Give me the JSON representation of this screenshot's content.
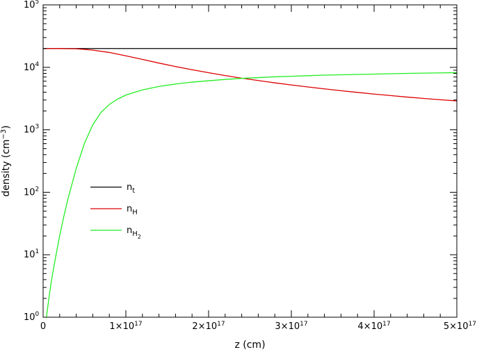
{
  "chart_data": {
    "type": "line",
    "title": "",
    "xlabel": "z (cm)",
    "ylabel": "density (cm",
    "ylabel_exp": "−3",
    "ylabel_close": ")",
    "xlim": [
      0,
      5e+17
    ],
    "ylim": [
      1,
      100000
    ],
    "yscale": "log",
    "grid": false,
    "legend_position": "left-middle",
    "x_ticks": [
      {
        "value": 0,
        "mantissa": "0",
        "exp": ""
      },
      {
        "value": 1e+17,
        "mantissa": "1×10",
        "exp": "17"
      },
      {
        "value": 2e+17,
        "mantissa": "2×10",
        "exp": "17"
      },
      {
        "value": 3e+17,
        "mantissa": "3×10",
        "exp": "17"
      },
      {
        "value": 4e+17,
        "mantissa": "4×10",
        "exp": "17"
      },
      {
        "value": 5e+17,
        "mantissa": "5×10",
        "exp": "17"
      }
    ],
    "y_ticks": [
      {
        "value": 1,
        "base": "10",
        "exp": "0"
      },
      {
        "value": 10,
        "base": "10",
        "exp": "1"
      },
      {
        "value": 100,
        "base": "10",
        "exp": "2"
      },
      {
        "value": 1000,
        "base": "10",
        "exp": "3"
      },
      {
        "value": 10000,
        "base": "10",
        "exp": "4"
      },
      {
        "value": 100000,
        "base": "10",
        "exp": "5"
      }
    ],
    "series": [
      {
        "name": "n",
        "sub": "t",
        "subsub": "",
        "color": "#000000",
        "x": [
          0,
          5e+17
        ],
        "y": [
          20000,
          20000
        ]
      },
      {
        "name": "n",
        "sub": "H",
        "subsub": "",
        "color": "#dd0000",
        "x": [
          0,
          2e+16,
          4e+16,
          6e+16,
          8e+16,
          1e+17,
          1.2e+17,
          1.4e+17,
          1.6e+17,
          1.8e+17,
          2e+17,
          2.2e+17,
          2.4e+17,
          2.6e+17,
          2.8e+17,
          3e+17,
          3.2e+17,
          3.4e+17,
          3.6e+17,
          3.8e+17,
          4e+17,
          4.2e+17,
          4.4e+17,
          4.6e+17,
          4.8e+17,
          5e+17
        ],
        "y": [
          20000,
          19980,
          19800,
          18900,
          17300,
          15300,
          13400,
          11700,
          10300,
          9150,
          8200,
          7380,
          6700,
          6150,
          5650,
          5220,
          4850,
          4520,
          4230,
          3970,
          3730,
          3530,
          3340,
          3180,
          3030,
          2900
        ]
      },
      {
        "name": "n",
        "sub": "H",
        "subsub": "2",
        "color": "#22ee22",
        "x": [
          4000000000000000.0,
          6000000000000000.0,
          8000000000000000.0,
          1e+16,
          1.5e+16,
          2e+16,
          2.5e+16,
          3e+16,
          4e+16,
          5e+16,
          6e+16,
          7e+16,
          8e+16,
          9e+16,
          1e+17,
          1.2e+17,
          1.4e+17,
          1.6e+17,
          1.8e+17,
          2e+17,
          2.2e+17,
          2.4e+17,
          2.6e+17,
          2.8e+17,
          3e+17,
          3.2e+17,
          3.4e+17,
          3.6e+17,
          3.8e+17,
          4e+17,
          4.2e+17,
          4.4e+17,
          4.6e+17,
          4.8e+17,
          5e+17
        ],
        "y": [
          1,
          1.6,
          2.5,
          3.8,
          9,
          20,
          41,
          78,
          240,
          610,
          1200,
          1900,
          2550,
          3100,
          3600,
          4350,
          4950,
          5400,
          5800,
          6100,
          6400,
          6650,
          6850,
          7050,
          7200,
          7350,
          7500,
          7600,
          7700,
          7800,
          7900,
          8000,
          8080,
          8150,
          8220
        ]
      }
    ]
  }
}
